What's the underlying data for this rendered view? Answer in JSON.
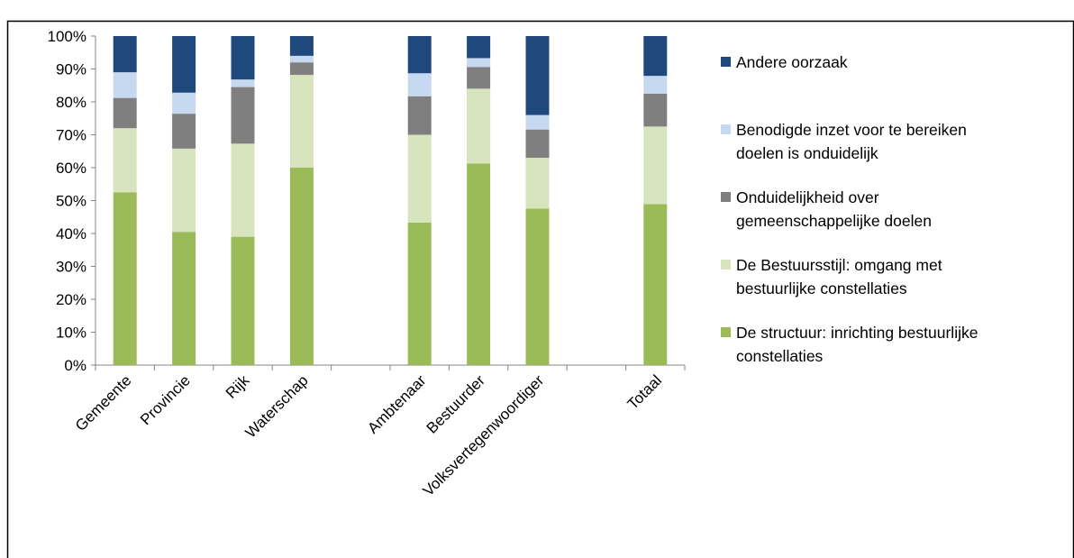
{
  "chart_data": {
    "type": "bar",
    "stacked": true,
    "categories": [
      "Gemeente",
      "Provincie",
      "Rijk",
      "Waterschap",
      "",
      "Ambtenaar",
      "Bestuurder",
      "Volksvertegenwoordiger",
      "",
      "Totaal"
    ],
    "ylim": [
      0,
      100
    ],
    "y_tick_labels": [
      "0%",
      "10%",
      "20%",
      "30%",
      "40%",
      "50%",
      "60%",
      "70%",
      "80%",
      "90%",
      "100%"
    ],
    "grid": false,
    "legend_position": "right",
    "series": [
      {
        "name": "De structuur: inrichting bestuurlijke constellaties",
        "color": "#9bbb59",
        "values": [
          52.5,
          40.5,
          39,
          60,
          null,
          43.3,
          61.3,
          47.6,
          null,
          48.9
        ]
      },
      {
        "name": "De Bestuursstijl: omgang met bestuurlijke constellaties",
        "color": "#d7e4bd",
        "values": [
          19.5,
          25.3,
          28.3,
          28.2,
          null,
          26.7,
          22.7,
          15.4,
          null,
          23.6
        ]
      },
      {
        "name": "Onduidelijkheid over gemeenschappelijke doelen",
        "color": "#7f7f7f",
        "values": [
          9.2,
          10.6,
          17.2,
          3.8,
          null,
          11.7,
          6.6,
          8.6,
          null,
          10.0
        ]
      },
      {
        "name": "Benodigde inzet voor te bereiken doelen is onduidelijk",
        "color": "#c6d9f1",
        "values": [
          7.8,
          6.4,
          2.3,
          2.0,
          null,
          7.0,
          2.7,
          4.4,
          null,
          5.4
        ]
      },
      {
        "name": "Andere oorzaak",
        "color": "#1f497d",
        "values": [
          11.0,
          17.2,
          13.2,
          6.0,
          null,
          11.3,
          6.7,
          24.0,
          null,
          12.1
        ]
      }
    ],
    "legend_order": [
      {
        "name": "Andere oorzaak",
        "lines": [
          "Andere oorzaak"
        ]
      },
      {
        "name": "Benodigde inzet voor te bereiken doelen is onduidelijk",
        "lines": [
          "Benodigde inzet voor te bereiken",
          "doelen is onduidelijk"
        ]
      },
      {
        "name": "Onduidelijkheid over gemeenschappelijke doelen",
        "lines": [
          "Onduidelijkheid over",
          "gemeenschappelijke doelen"
        ]
      },
      {
        "name": "De Bestuursstijl: omgang met bestuurlijke constellaties",
        "lines": [
          "De Bestuursstijl: omgang met",
          "bestuurlijke constellaties"
        ]
      },
      {
        "name": "De structuur: inrichting bestuurlijke constellaties",
        "lines": [
          "De structuur: inrichting bestuurlijke",
          "constellaties"
        ]
      }
    ]
  }
}
